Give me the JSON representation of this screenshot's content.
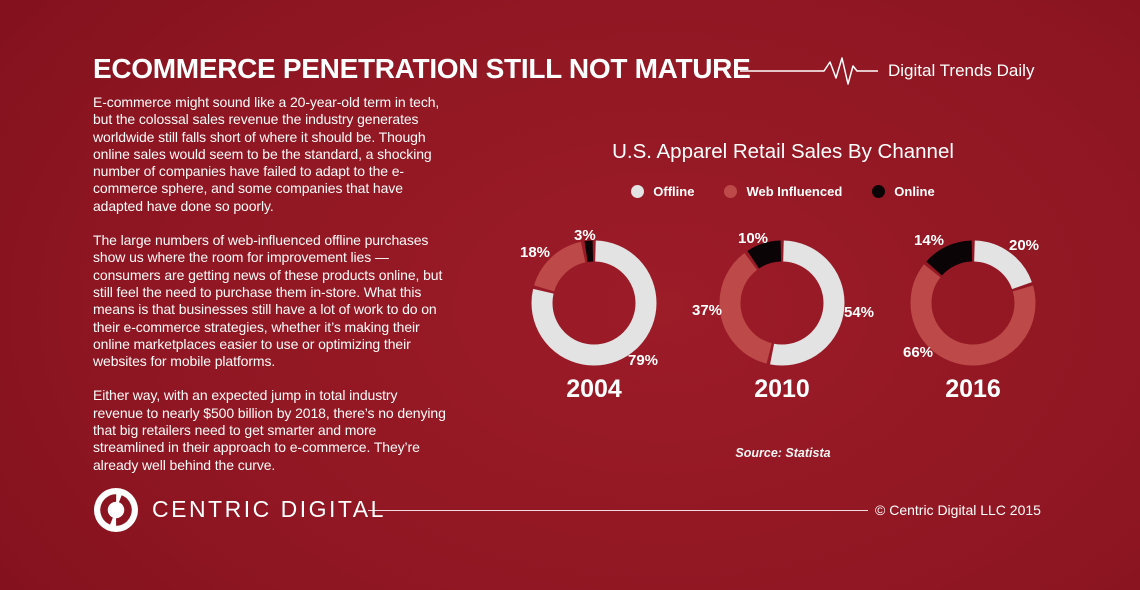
{
  "theme": {
    "background": "#8e1622",
    "text": "#ffffff"
  },
  "header": {
    "title": "ECOMMERCE PENETRATION STILL NOT MATURE",
    "brand": "Digital Trends Daily"
  },
  "article": {
    "paragraphs": [
      "E-commerce might sound like a 20-year-old term in tech, but the colossal sales revenue the industry generates worldwide still falls short of where it should be. Though online sales would seem to be the standard, a shocking number of companies have failed to adapt to the e-commerce sphere, and some companies that have adapted have done so poorly.",
      "The large numbers of web-influenced offline purchases show us where the room for improvement lies — consumers are getting news of these products online, but still feel the need to purchase them in-store. What this means is that businesses still have a lot of work to do on their e-commerce strategies, whether it’s making their online marketplaces easier to use or optimizing their websites for mobile platforms.",
      "Either way, with an expected jump in total industry revenue to nearly $500 billion by 2018, there’s no denying that big retailers need to get smarter and more streamlined in their approach to e-commerce. They’re already well behind the curve."
    ]
  },
  "chart_data": {
    "type": "pie",
    "subtype": "donut",
    "title": "U.S. Apparel Retail Sales By Channel",
    "legend": [
      {
        "label": "Offline",
        "color": "#e3e3e3"
      },
      {
        "label": "Web Influenced",
        "color": "#bd4a49"
      },
      {
        "label": "Online",
        "color": "#0b0406"
      }
    ],
    "legend_position": "top",
    "charts": [
      {
        "year": "2004",
        "values": [
          79,
          18,
          3
        ],
        "labels": [
          "79%",
          "18%",
          "3%"
        ]
      },
      {
        "year": "2010",
        "values": [
          54,
          37,
          10
        ],
        "labels": [
          "54%",
          "37%",
          "10%"
        ]
      },
      {
        "year": "2016",
        "values": [
          20,
          66,
          14
        ],
        "labels": [
          "20%",
          "66%",
          "14%"
        ]
      }
    ],
    "source": "Source: Statista"
  },
  "footer": {
    "brand": "CENTRIC DIGITAL",
    "copyright": "© Centric Digital LLC 2015"
  }
}
